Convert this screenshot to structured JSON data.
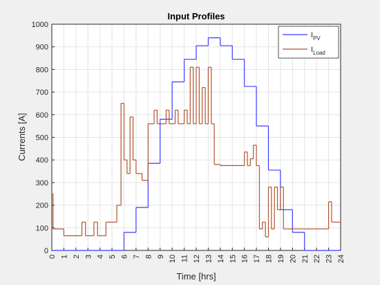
{
  "chart_data": {
    "type": "stairs",
    "title": "Input Profiles",
    "xlabel": "Time [hrs]",
    "ylabel": "Currents [A]",
    "xlim": [
      0,
      24
    ],
    "xticks": [
      0,
      1,
      2,
      3,
      4,
      5,
      6,
      7,
      8,
      9,
      10,
      11,
      12,
      13,
      14,
      15,
      16,
      17,
      18,
      19,
      20,
      21,
      22,
      23,
      24
    ],
    "ylim": [
      0,
      1000
    ],
    "yticks": [
      0,
      100,
      200,
      300,
      400,
      500,
      600,
      700,
      800,
      900,
      1000
    ],
    "grid": true,
    "legend": "top-right",
    "series": [
      {
        "name": "IPV",
        "color": "#3a3aff",
        "x": [
          0,
          6,
          7,
          8,
          9,
          10,
          11,
          12,
          13,
          14,
          15,
          16,
          17,
          18,
          19,
          20,
          21,
          24
        ],
        "values": [
          0,
          80,
          190,
          385,
          580,
          745,
          845,
          905,
          940,
          905,
          845,
          725,
          550,
          355,
          180,
          80,
          0,
          0
        ]
      },
      {
        "name": "ILoad",
        "color": "#b0532d",
        "x": [
          0,
          0.1,
          1,
          2.5,
          2.8,
          3.5,
          3.8,
          4.5,
          5.4,
          5.75,
          6.0,
          6.25,
          6.5,
          6.75,
          7.0,
          7.5,
          8.0,
          8.5,
          8.75,
          9.5,
          9.75,
          10.25,
          10.5,
          11.0,
          11.25,
          11.5,
          11.75,
          12.0,
          12.25,
          12.5,
          12.75,
          13.0,
          13.25,
          13.5,
          14.0,
          16.0,
          16.25,
          16.5,
          16.75,
          17.0,
          17.25,
          17.5,
          17.75,
          18.0,
          18.25,
          18.5,
          18.75,
          19.0,
          19.25,
          21.0,
          23.0,
          23.25,
          24
        ],
        "values": [
          250,
          95,
          65,
          125,
          65,
          125,
          65,
          125,
          200,
          650,
          400,
          340,
          590,
          400,
          340,
          310,
          560,
          620,
          560,
          620,
          560,
          620,
          560,
          620,
          560,
          810,
          560,
          810,
          560,
          720,
          560,
          810,
          560,
          380,
          375,
          435,
          375,
          405,
          465,
          375,
          95,
          125,
          60,
          280,
          95,
          280,
          180,
          280,
          95,
          95,
          215,
          125,
          125
        ]
      }
    ]
  }
}
